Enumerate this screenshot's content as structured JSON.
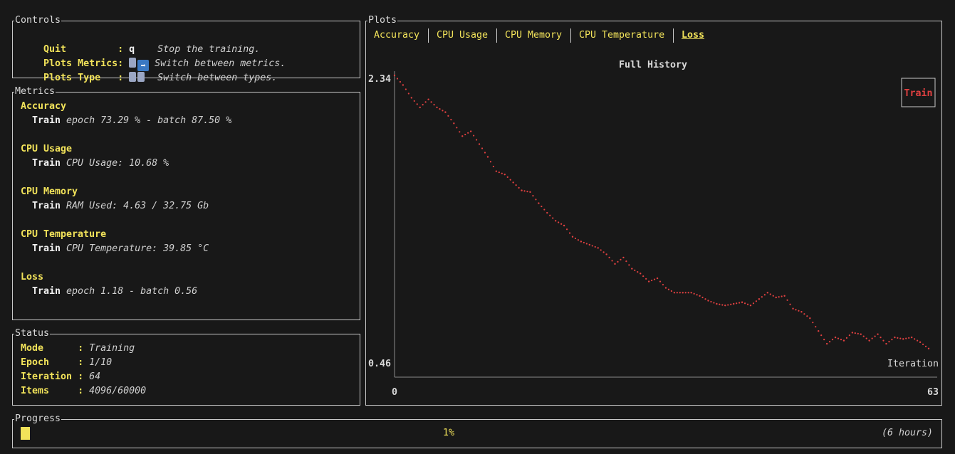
{
  "controls": {
    "title": "Controls",
    "rows": [
      {
        "key": "Quit         ",
        "sep": ": ",
        "value": "q",
        "desc": "Stop the training."
      },
      {
        "key": "Plots Metrics",
        "sep": ": ",
        "value": "",
        "desc": "Switch between metrics."
      },
      {
        "key": "Plots Type   ",
        "sep": ": ",
        "value": "",
        "desc": "Switch between types."
      }
    ]
  },
  "metrics": {
    "title": "Metrics",
    "groups": [
      {
        "name": "Accuracy",
        "split": "Train",
        "value": "epoch 73.29 % - batch 87.50 %"
      },
      {
        "name": "CPU Usage",
        "split": "Train",
        "value": "CPU Usage: 10.68 %"
      },
      {
        "name": "CPU Memory",
        "split": "Train",
        "value": "RAM Used: 4.63 / 32.75 Gb"
      },
      {
        "name": "CPU Temperature",
        "split": "Train",
        "value": "CPU Temperature: 39.85 °C"
      },
      {
        "name": "Loss",
        "split": "Train",
        "value": "epoch 1.18 - batch 0.56"
      }
    ]
  },
  "status": {
    "title": "Status",
    "rows": [
      {
        "key": "Mode     ",
        "sep": ": ",
        "value": "Training"
      },
      {
        "key": "Epoch    ",
        "sep": ": ",
        "value": "1/10"
      },
      {
        "key": "Iteration",
        "sep": ": ",
        "value": "64"
      },
      {
        "key": "Items    ",
        "sep": ": ",
        "value": "4096/60000"
      }
    ]
  },
  "plots": {
    "title": "Plots",
    "tabs": [
      "Accuracy",
      "CPU Usage",
      "CPU Memory",
      "CPU Temperature",
      "Loss"
    ],
    "active_tab": "Loss"
  },
  "progress": {
    "title": "Progress",
    "percent_label": "1%",
    "percent": 1,
    "eta": "(6 hours)"
  },
  "colors": {
    "accent": "#f2e35a",
    "series": "#e04040",
    "border": "#c8c8c8"
  },
  "chart_data": {
    "type": "scatter",
    "title": "Full History",
    "xlabel": "Iteration",
    "ylabel": "",
    "xlim": [
      0,
      63
    ],
    "ylim": [
      0.46,
      2.34
    ],
    "x_tick_labels": [
      "0",
      "63"
    ],
    "y_tick_labels": [
      "2.34",
      "0.46"
    ],
    "legend_position": "top-right",
    "series": [
      {
        "name": "Train",
        "color": "#e04040",
        "x": [
          0,
          1,
          2,
          3,
          4,
          5,
          6,
          7,
          8,
          9,
          10,
          11,
          12,
          13,
          14,
          15,
          16,
          17,
          18,
          19,
          20,
          21,
          22,
          23,
          24,
          25,
          26,
          27,
          28,
          29,
          30,
          31,
          32,
          33,
          34,
          35,
          36,
          37,
          38,
          39,
          40,
          41,
          42,
          43,
          44,
          45,
          46,
          47,
          48,
          49,
          50,
          51,
          52,
          53,
          54,
          55,
          56,
          57,
          58,
          59,
          60,
          61,
          62,
          63
        ],
        "values": [
          2.34,
          2.28,
          2.2,
          2.14,
          2.19,
          2.14,
          2.11,
          2.04,
          1.96,
          1.99,
          1.91,
          1.83,
          1.74,
          1.72,
          1.67,
          1.62,
          1.61,
          1.54,
          1.48,
          1.43,
          1.4,
          1.33,
          1.3,
          1.28,
          1.26,
          1.22,
          1.16,
          1.2,
          1.13,
          1.1,
          1.05,
          1.07,
          1.01,
          0.98,
          0.98,
          0.98,
          0.96,
          0.93,
          0.91,
          0.9,
          0.91,
          0.92,
          0.9,
          0.94,
          0.98,
          0.95,
          0.96,
          0.88,
          0.86,
          0.82,
          0.74,
          0.66,
          0.7,
          0.68,
          0.73,
          0.72,
          0.68,
          0.72,
          0.66,
          0.7,
          0.69,
          0.7,
          0.67,
          0.63
        ]
      }
    ]
  }
}
